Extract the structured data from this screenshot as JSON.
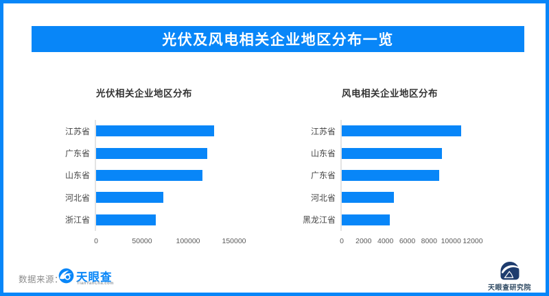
{
  "frame": {
    "border_color": "#0886F8",
    "background_color": "#FFFFFF"
  },
  "header": {
    "title": "光伏及风电相关企业地区分布一览",
    "bg_color": "#0886F8",
    "text_color": "#FFFFFF"
  },
  "chart_data": [
    {
      "type": "bar",
      "orientation": "horizontal",
      "title": "光伏相关企业地区分布",
      "categories": [
        "江苏省",
        "广东省",
        "山东省",
        "河北省",
        "浙江省"
      ],
      "values": [
        128000,
        121000,
        116000,
        73000,
        65000
      ],
      "xlim": [
        0,
        150000
      ],
      "xticks": [
        0,
        50000,
        100000,
        150000
      ],
      "bar_color": "#0886F8",
      "grid": "off",
      "legend": "none"
    },
    {
      "type": "bar",
      "orientation": "horizontal",
      "title": "风电相关企业地区分布",
      "categories": [
        "江苏省",
        "山东省",
        "广东省",
        "河北省",
        "黑龙江省"
      ],
      "values": [
        10900,
        9200,
        8900,
        4800,
        4400
      ],
      "xlim": [
        0,
        12000
      ],
      "xticks": [
        0,
        2000,
        4000,
        6000,
        8000,
        10000,
        12000
      ],
      "bar_color": "#0886F8",
      "grid": "off",
      "legend": "none"
    }
  ],
  "footer": {
    "source_label": "数据来源：",
    "tianyancha_logo": {
      "icon": "eye-wave-icon",
      "name": "天眼查",
      "url_text": "TianYanCha.com",
      "color": "#0886F8"
    },
    "institute_logo": {
      "icon": "wave-shield-icon",
      "name": "天眼查研究院",
      "color": "#1E3C6E"
    }
  }
}
